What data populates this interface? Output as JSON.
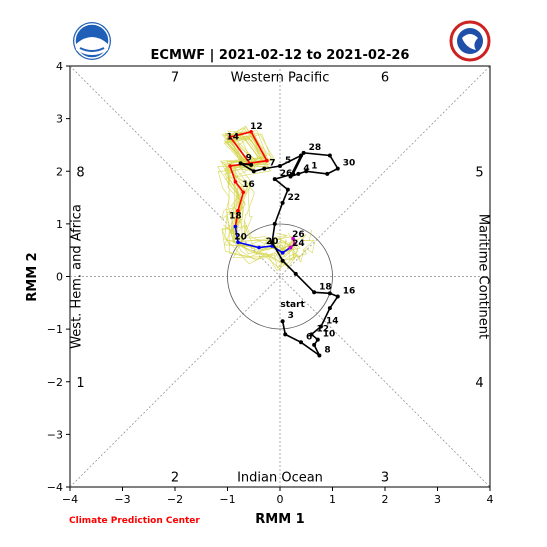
{
  "chart_data": {
    "type": "line",
    "title": "ECMWF | 2021-02-12 to 2021-02-26",
    "xlabel": "RMM 1",
    "ylabel": "RMM 2",
    "xlim": [
      -4,
      4
    ],
    "ylim": [
      -4,
      4
    ],
    "xticks": [
      "−4",
      "−3",
      "−2",
      "−1",
      "0",
      "1",
      "2",
      "3",
      "4"
    ],
    "yticks": [
      "−4",
      "−3",
      "−2",
      "−1",
      "0",
      "1",
      "2",
      "3",
      "4"
    ],
    "phase_numbers": [
      {
        "label": "1",
        "x": -3.8,
        "y": -2.0
      },
      {
        "label": "2",
        "x": -2.0,
        "y": -3.8
      },
      {
        "label": "3",
        "x": 2.0,
        "y": -3.8
      },
      {
        "label": "4",
        "x": 3.8,
        "y": -2.0
      },
      {
        "label": "5",
        "x": 3.8,
        "y": 2.0
      },
      {
        "label": "6",
        "x": 2.0,
        "y": 3.8
      },
      {
        "label": "7",
        "x": -2.0,
        "y": 3.8
      },
      {
        "label": "8",
        "x": -3.8,
        "y": 2.0
      }
    ],
    "region_labels": {
      "top": "Western Pacific",
      "bottom": "Indian Ocean",
      "left": "West. Hem. and Africa",
      "right": "Maritime Continent"
    },
    "circle_radius": 1,
    "observed": {
      "color": "#000000",
      "start_label": "start",
      "points": [
        {
          "x": 0.05,
          "y": -0.85,
          "label": "3"
        },
        {
          "x": 0.1,
          "y": -1.1,
          "label": ""
        },
        {
          "x": 0.4,
          "y": -1.25,
          "label": "6"
        },
        {
          "x": 0.75,
          "y": -1.5,
          "label": "8"
        },
        {
          "x": 0.65,
          "y": -1.3,
          "label": ""
        },
        {
          "x": 0.72,
          "y": -1.2,
          "label": "10"
        },
        {
          "x": 0.6,
          "y": -1.1,
          "label": "12"
        },
        {
          "x": 0.78,
          "y": -0.95,
          "label": "14"
        },
        {
          "x": 0.95,
          "y": -0.6,
          "label": ""
        },
        {
          "x": 1.1,
          "y": -0.38,
          "label": "16"
        },
        {
          "x": 0.95,
          "y": -0.32,
          "label": ""
        },
        {
          "x": 0.65,
          "y": -0.3,
          "label": "18"
        },
        {
          "x": 0.3,
          "y": 0.05,
          "label": ""
        },
        {
          "x": 0.05,
          "y": 0.3,
          "label": ""
        },
        {
          "x": -0.15,
          "y": 0.65,
          "label": ""
        },
        {
          "x": -0.1,
          "y": 1.0,
          "label": ""
        },
        {
          "x": 0.05,
          "y": 1.4,
          "label": "22"
        },
        {
          "x": 0.15,
          "y": 1.65,
          "label": ""
        },
        {
          "x": -0.1,
          "y": 1.85,
          "label": "26"
        },
        {
          "x": 0.25,
          "y": 1.95,
          "label": ""
        },
        {
          "x": 0.45,
          "y": 2.35,
          "label": "28"
        },
        {
          "x": 0.95,
          "y": 2.3,
          "label": ""
        },
        {
          "x": 1.1,
          "y": 2.05,
          "label": "30"
        },
        {
          "x": 0.9,
          "y": 1.95,
          "label": ""
        },
        {
          "x": 0.5,
          "y": 2.0,
          "label": "1"
        },
        {
          "x": 0.35,
          "y": 1.95,
          "label": "4"
        },
        {
          "x": 0.2,
          "y": 1.9,
          "label": ""
        },
        {
          "x": 0.4,
          "y": 2.3,
          "label": ""
        },
        {
          "x": 0.0,
          "y": 2.1,
          "label": "5"
        },
        {
          "x": -0.3,
          "y": 2.05,
          "label": "7"
        },
        {
          "x": -0.5,
          "y": 2.0,
          "label": ""
        },
        {
          "x": -0.75,
          "y": 2.15,
          "label": "9"
        },
        {
          "x": -0.55,
          "y": 2.12,
          "label": ""
        }
      ]
    },
    "forecast_segments": [
      {
        "color": "#ff0000",
        "points": [
          [
            -0.55,
            2.12
          ],
          [
            -0.95,
            2.65
          ],
          [
            -0.55,
            2.75
          ],
          [
            -0.25,
            2.2
          ],
          [
            -0.95,
            2.1
          ],
          [
            -0.85,
            1.8
          ],
          [
            -0.7,
            1.6
          ],
          [
            -0.8,
            1.25
          ]
        ]
      },
      {
        "color": "#ff0000",
        "labels": [
          {
            "x": -0.45,
            "y": 2.8,
            "label": "12"
          },
          {
            "x": -0.9,
            "y": 2.6,
            "label": "14"
          },
          {
            "x": -0.6,
            "y": 1.7,
            "label": "16"
          },
          {
            "x": -0.85,
            "y": 1.1,
            "label": "18"
          }
        ],
        "points": [
          [
            -0.8,
            1.25
          ],
          [
            -0.85,
            0.95
          ]
        ]
      },
      {
        "color": "#0000ff",
        "labels": [
          {
            "x": -0.75,
            "y": 0.7,
            "label": "20"
          },
          {
            "x": -0.15,
            "y": 0.62,
            "label": "20"
          }
        ],
        "points": [
          [
            -0.85,
            0.95
          ],
          [
            -0.8,
            0.65
          ],
          [
            -0.4,
            0.55
          ],
          [
            -0.15,
            0.58
          ],
          [
            0.05,
            0.45
          ],
          [
            0.2,
            0.55
          ]
        ]
      },
      {
        "color": "#cc00cc",
        "labels": [
          {
            "x": 0.35,
            "y": 0.75,
            "label": "26"
          },
          {
            "x": 0.35,
            "y": 0.58,
            "label": "24"
          }
        ],
        "points": [
          [
            0.2,
            0.55
          ],
          [
            0.28,
            0.62
          ],
          [
            0.25,
            0.72
          ]
        ]
      }
    ],
    "ensemble_color": "#d4d44a",
    "ensemble_members": 20,
    "credit": "Climate Prediction Center"
  }
}
